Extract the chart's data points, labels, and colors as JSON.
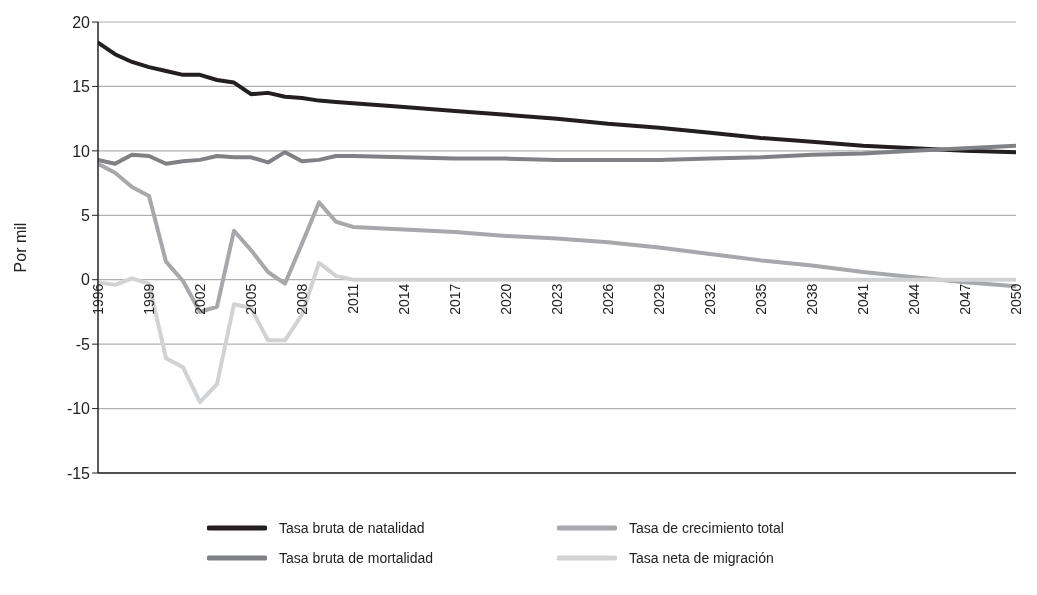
{
  "chart_data": {
    "type": "line",
    "ylabel": "Por mil",
    "x": [
      1996,
      1997,
      1998,
      1999,
      2000,
      2001,
      2002,
      2003,
      2004,
      2005,
      2006,
      2007,
      2008,
      2009,
      2010,
      2011,
      2014,
      2017,
      2020,
      2023,
      2026,
      2029,
      2032,
      2035,
      2038,
      2041,
      2044,
      2047,
      2050
    ],
    "series": [
      {
        "name": "Tasa bruta de natalidad",
        "color": "#231f20",
        "values": [
          18.4,
          17.5,
          16.9,
          16.5,
          16.2,
          15.9,
          15.9,
          15.5,
          15.3,
          14.4,
          14.5,
          14.2,
          14.1,
          13.9,
          13.8,
          13.7,
          13.4,
          13.1,
          12.8,
          12.5,
          12.1,
          11.8,
          11.4,
          11.0,
          10.7,
          10.4,
          10.2,
          10.0,
          9.9
        ]
      },
      {
        "name": "Tasa bruta de mortalidad",
        "color": "#808184",
        "values": [
          9.3,
          9.0,
          9.7,
          9.6,
          9.0,
          9.2,
          9.3,
          9.6,
          9.5,
          9.5,
          9.1,
          9.9,
          9.2,
          9.3,
          9.6,
          9.6,
          9.5,
          9.4,
          9.4,
          9.3,
          9.3,
          9.3,
          9.4,
          9.5,
          9.7,
          9.8,
          10.0,
          10.2,
          10.4
        ]
      },
      {
        "name": "Tasa de crecimiento total",
        "color": "#a7a8ab",
        "values": [
          9.0,
          8.3,
          7.2,
          6.5,
          1.4,
          -0.1,
          -2.5,
          -2.1,
          3.8,
          2.3,
          0.6,
          -0.3,
          2.8,
          6.0,
          4.5,
          4.1,
          3.9,
          3.7,
          3.4,
          3.2,
          2.9,
          2.5,
          2.0,
          1.5,
          1.1,
          0.6,
          0.2,
          -0.2,
          -0.5
        ]
      },
      {
        "name": "Tasa neta de migración",
        "color": "#d1d2d4",
        "values": [
          -0.2,
          -0.4,
          0.1,
          -0.3,
          -6.1,
          -6.8,
          -9.5,
          -8.1,
          -1.9,
          -2.2,
          -4.7,
          -4.7,
          -2.7,
          1.3,
          0.3,
          0,
          0,
          0,
          0,
          0,
          0,
          0,
          0,
          0,
          0,
          0,
          0,
          0,
          0
        ]
      }
    ],
    "xlim": [
      1996,
      2050
    ],
    "xticks": [
      1996,
      1999,
      2002,
      2005,
      2008,
      2011,
      2014,
      2017,
      2020,
      2023,
      2026,
      2029,
      2032,
      2035,
      2038,
      2041,
      2044,
      2047,
      2050
    ],
    "ylim": [
      -15,
      20
    ],
    "yticks": [
      -15,
      -10,
      -5,
      0,
      5,
      10,
      15,
      20
    ],
    "grid": "y",
    "legend": "bottom",
    "marker": "none",
    "line_style": "solid"
  }
}
